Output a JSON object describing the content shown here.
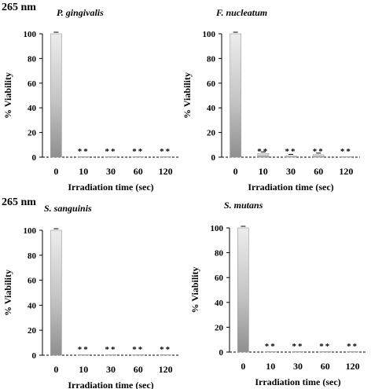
{
  "figure": {
    "wavelength_labels": [
      "265 nm",
      "265 nm"
    ],
    "x_axis_label": "Irradiation time (sec)",
    "y_axis_label": "% Viability"
  },
  "chart_data": [
    {
      "type": "bar",
      "title": "P. gingivalis",
      "xlabel": "Irradiation time (sec)",
      "ylabel": "% Viability",
      "categories": [
        "0",
        "10",
        "30",
        "60",
        "120"
      ],
      "values": [
        100,
        0,
        0,
        0,
        0
      ],
      "annotations": [
        "",
        "**",
        "**",
        "**",
        "**"
      ],
      "ylim": [
        0,
        100
      ],
      "yticks": [
        0,
        20,
        40,
        60,
        80,
        100
      ]
    },
    {
      "type": "bar",
      "title": "F. nucleatum",
      "xlabel": "Irradiation time (sec)",
      "ylabel": "% Viability",
      "categories": [
        "0",
        "10",
        "30",
        "60",
        "120"
      ],
      "values": [
        100,
        3,
        1,
        2,
        0
      ],
      "annotations": [
        "",
        "**",
        "**",
        "**",
        "**"
      ],
      "ylim": [
        0,
        100
      ],
      "yticks": [
        0,
        20,
        40,
        60,
        80,
        100
      ]
    },
    {
      "type": "bar",
      "title": "S. sanguinis",
      "xlabel": "Irradiation time (sec)",
      "ylabel": "% Viability",
      "categories": [
        "0",
        "10",
        "30",
        "60",
        "120"
      ],
      "values": [
        100,
        0,
        0,
        0,
        0
      ],
      "annotations": [
        "",
        "**",
        "**",
        "**",
        "**"
      ],
      "ylim": [
        0,
        100
      ],
      "yticks": [
        0,
        20,
        40,
        60,
        80,
        100
      ]
    },
    {
      "type": "bar",
      "title": "S. mutans",
      "xlabel": "Irradiation time (sec)",
      "ylabel": "% Viability",
      "categories": [
        "0",
        "10",
        "30",
        "60",
        "120"
      ],
      "values": [
        100,
        0,
        0,
        0,
        0
      ],
      "annotations": [
        "",
        "**",
        "**",
        "**",
        "**"
      ],
      "ylim": [
        0,
        100
      ],
      "yticks": [
        0,
        20,
        40,
        60,
        80,
        100
      ]
    }
  ]
}
